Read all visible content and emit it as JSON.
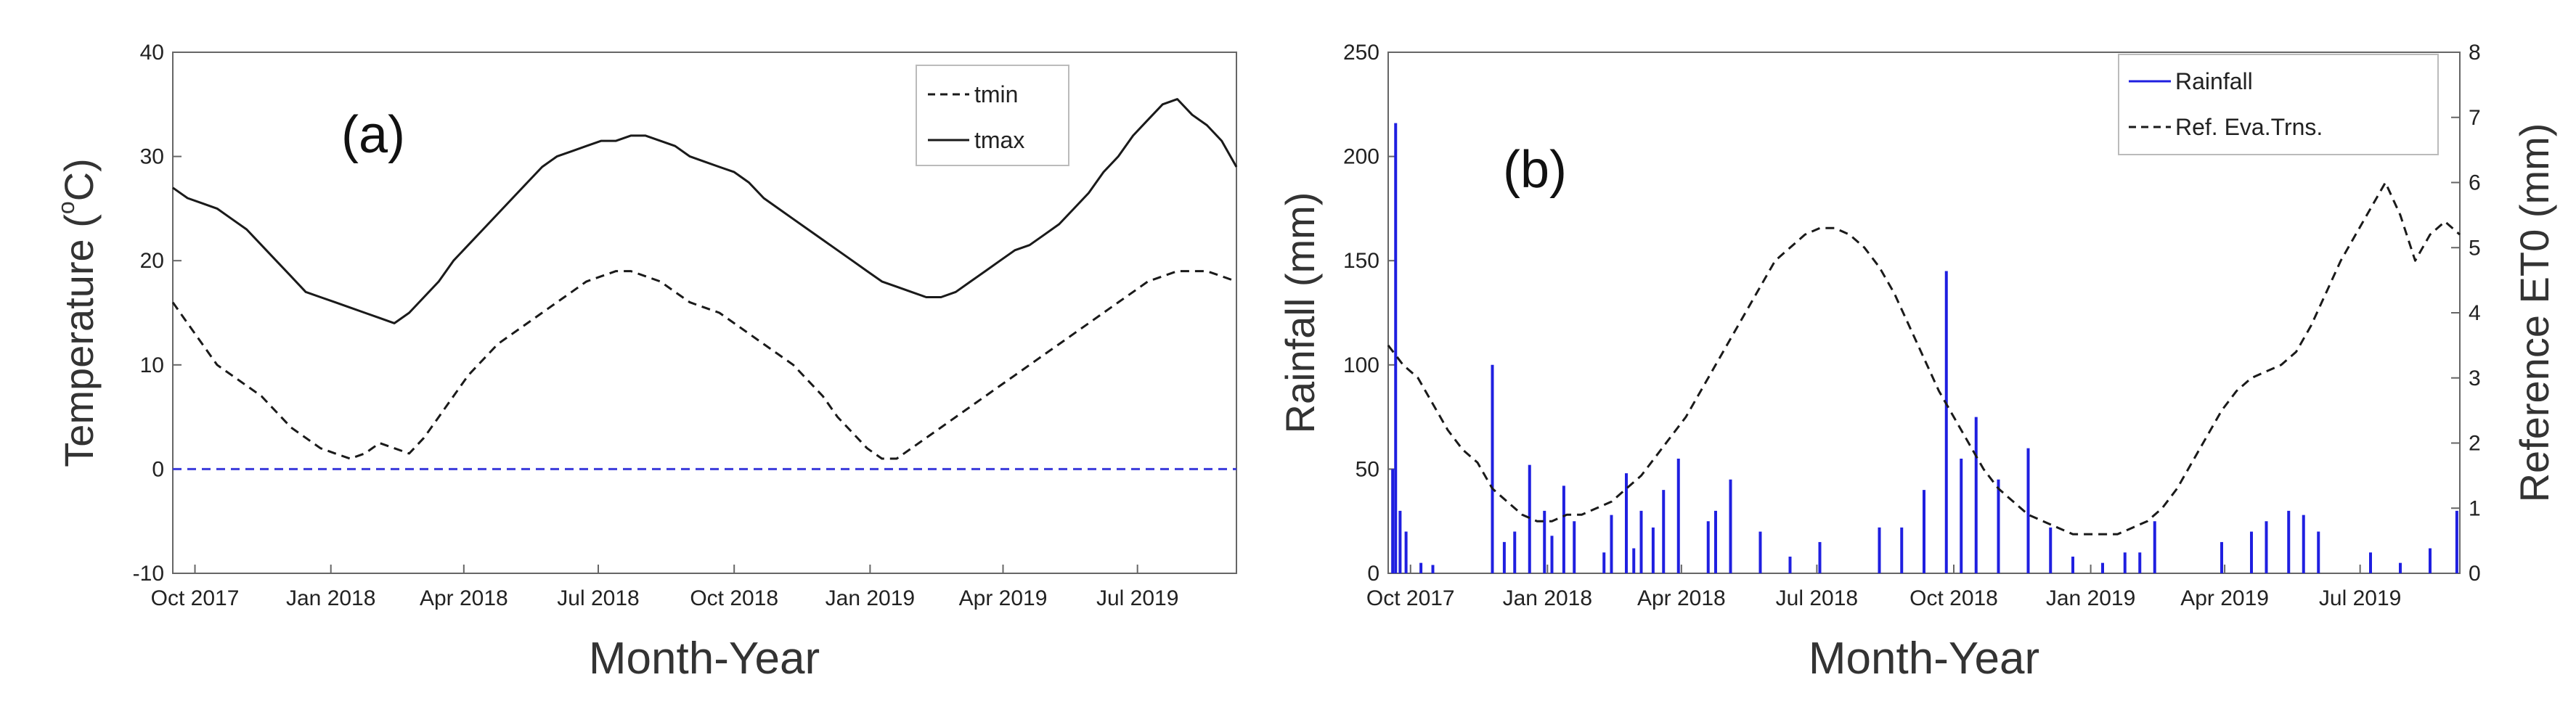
{
  "chart_data": [
    {
      "panel": "(a)",
      "type": "line",
      "title": "",
      "xlabel": "Month-Year",
      "ylabel": "Temperature (°C)",
      "ylabel_main": "Temperature (",
      "ylabel_degree": "o",
      "ylabel_unit": "C)",
      "xlim": [
        0,
        720
      ],
      "ylim": [
        -10,
        40
      ],
      "yticks": [
        -10,
        0,
        10,
        20,
        30,
        40
      ],
      "ytick_labels": [
        "-10",
        "0",
        "10",
        "20",
        "30",
        "40"
      ],
      "xticks": [
        {
          "label": "Oct 2017",
          "day": 15
        },
        {
          "label": "Jan 2018",
          "day": 107
        },
        {
          "label": "Apr 2018",
          "day": 197
        },
        {
          "label": "Jul 2018",
          "day": 288
        },
        {
          "label": "Oct 2018",
          "day": 380
        },
        {
          "label": "Jan 2019",
          "day": 472
        },
        {
          "label": "Apr 2019",
          "day": 562
        },
        {
          "label": "Jul 2019",
          "day": 653
        }
      ],
      "legend": {
        "position": "top-right",
        "entries": [
          "tmin",
          "tmax"
        ]
      },
      "series": [
        {
          "name": "tmax",
          "style": "solid",
          "color": "#1a1a1a",
          "x": [
            0,
            10,
            20,
            30,
            40,
            50,
            60,
            70,
            80,
            90,
            100,
            110,
            120,
            130,
            140,
            150,
            160,
            170,
            180,
            190,
            200,
            210,
            220,
            230,
            240,
            250,
            260,
            270,
            280,
            290,
            300,
            310,
            320,
            330,
            340,
            350,
            360,
            370,
            380,
            390,
            400,
            410,
            420,
            430,
            440,
            450,
            460,
            470,
            480,
            490,
            500,
            510,
            520,
            530,
            540,
            550,
            560,
            570,
            580,
            590,
            600,
            610,
            620,
            630,
            640,
            650,
            660,
            670,
            680,
            690,
            700,
            710,
            720
          ],
          "y": [
            27,
            26,
            25.5,
            25,
            24,
            23,
            21.5,
            20,
            18.5,
            17,
            16.5,
            16,
            15.5,
            15,
            14.5,
            14,
            15,
            16.5,
            18,
            20,
            21.5,
            23,
            24.5,
            26,
            27.5,
            29,
            30,
            30.5,
            31,
            31.5,
            31.5,
            32,
            32,
            31.5,
            31,
            30,
            29.5,
            29,
            28.5,
            27.5,
            26,
            25,
            24,
            23,
            22,
            21,
            20,
            19,
            18,
            17.5,
            17,
            16.5,
            16.5,
            17,
            18,
            19,
            20,
            21,
            21.5,
            22.5,
            23.5,
            25,
            26.5,
            28.5,
            30,
            32,
            33.5,
            35,
            35.5,
            34,
            33,
            31.5,
            29
          ]
        },
        {
          "name": "tmin",
          "style": "dashed",
          "color": "#1a1a1a",
          "x": [
            0,
            10,
            20,
            30,
            40,
            50,
            60,
            70,
            80,
            90,
            100,
            110,
            120,
            130,
            140,
            150,
            160,
            170,
            180,
            190,
            200,
            210,
            220,
            230,
            240,
            250,
            260,
            270,
            280,
            290,
            300,
            310,
            320,
            330,
            340,
            350,
            360,
            370,
            380,
            390,
            400,
            410,
            420,
            430,
            440,
            450,
            460,
            470,
            480,
            490,
            500,
            510,
            520,
            530,
            540,
            550,
            560,
            570,
            580,
            590,
            600,
            610,
            620,
            630,
            640,
            650,
            660,
            670,
            680,
            690,
            700,
            710,
            720
          ],
          "y": [
            16,
            14,
            12,
            10,
            9,
            8,
            7,
            5.5,
            4,
            3,
            2,
            1.5,
            1,
            1.5,
            2.5,
            2,
            1.5,
            3,
            5,
            7,
            9,
            10.5,
            12,
            13,
            14,
            15,
            16,
            17,
            18,
            18.5,
            19,
            19,
            18.5,
            18,
            17,
            16,
            15.5,
            15,
            14,
            13,
            12,
            11,
            10,
            8.5,
            7,
            5,
            3.5,
            2,
            1,
            1,
            2,
            3,
            4,
            5,
            6,
            7,
            8,
            9,
            10,
            11,
            12,
            13,
            14,
            15,
            16,
            17,
            18,
            18.5,
            19,
            19,
            19,
            18.5,
            18
          ]
        },
        {
          "name": "zero reference",
          "style": "dashed",
          "color": "#3a3adb",
          "x": [
            0,
            720
          ],
          "y": [
            0,
            0
          ]
        }
      ]
    },
    {
      "panel": "(b)",
      "type": "line",
      "title": "",
      "xlabel": "Month-Year",
      "ylabel": "Rainfall (mm)",
      "ylabel_right": "Reference ET0 (mm)",
      "xlim": [
        0,
        720
      ],
      "ylim": [
        0,
        250
      ],
      "ylim_right": [
        0,
        8
      ],
      "yticks": [
        0,
        50,
        100,
        150,
        200,
        250
      ],
      "ytick_labels": [
        "0",
        "50",
        "100",
        "150",
        "200",
        "250"
      ],
      "yticks_right": [
        0,
        1,
        2,
        3,
        4,
        5,
        6,
        7,
        8
      ],
      "ytick_labels_right": [
        "0",
        "1",
        "2",
        "3",
        "4",
        "5",
        "6",
        "7",
        "8"
      ],
      "xticks": [
        {
          "label": "Oct 2017",
          "day": 15
        },
        {
          "label": "Jan 2018",
          "day": 107
        },
        {
          "label": "Apr 2018",
          "day": 197
        },
        {
          "label": "Jul 2018",
          "day": 288
        },
        {
          "label": "Oct 2018",
          "day": 380
        },
        {
          "label": "Jan 2019",
          "day": 472
        },
        {
          "label": "Apr 2019",
          "day": 562
        },
        {
          "label": "Jul 2019",
          "day": 653
        }
      ],
      "legend": {
        "position": "top-right",
        "entries": [
          "Rainfall",
          "Ref. Eva.Trns."
        ]
      },
      "series": [
        {
          "name": "Rainfall",
          "axis": "left",
          "style": "spikes",
          "color": "#1f1fe0",
          "x": [
            3,
            5,
            8,
            12,
            22,
            30,
            70,
            78,
            85,
            95,
            105,
            110,
            118,
            125,
            145,
            150,
            160,
            165,
            170,
            178,
            185,
            195,
            215,
            220,
            230,
            250,
            270,
            290,
            330,
            345,
            360,
            375,
            385,
            395,
            410,
            430,
            445,
            460,
            480,
            495,
            505,
            515,
            560,
            580,
            590,
            605,
            615,
            625,
            660,
            680,
            700,
            718
          ],
          "y": [
            50,
            216,
            30,
            20,
            5,
            4,
            100,
            15,
            20,
            52,
            30,
            18,
            42,
            25,
            10,
            28,
            48,
            12,
            30,
            22,
            40,
            55,
            25,
            30,
            45,
            20,
            8,
            15,
            22,
            22,
            40,
            145,
            55,
            75,
            45,
            60,
            22,
            8,
            5,
            10,
            10,
            25,
            15,
            20,
            25,
            30,
            28,
            20,
            10,
            5,
            12,
            30
          ]
        },
        {
          "name": "Ref. Eva.Trns.",
          "axis": "right",
          "style": "dashed",
          "color": "#1a1a1a",
          "x": [
            0,
            10,
            20,
            30,
            40,
            50,
            60,
            70,
            80,
            90,
            100,
            110,
            120,
            130,
            140,
            150,
            160,
            170,
            180,
            190,
            200,
            210,
            220,
            230,
            240,
            250,
            260,
            270,
            280,
            290,
            300,
            310,
            320,
            330,
            340,
            350,
            360,
            370,
            380,
            390,
            400,
            410,
            420,
            430,
            440,
            450,
            460,
            470,
            480,
            490,
            500,
            510,
            520,
            530,
            540,
            550,
            560,
            570,
            580,
            590,
            600,
            610,
            620,
            630,
            640,
            650,
            660,
            670,
            680,
            690,
            700,
            710,
            720
          ],
          "y": [
            3.5,
            3.2,
            3,
            2.6,
            2.2,
            1.9,
            1.7,
            1.3,
            1.1,
            0.9,
            0.8,
            0.8,
            0.9,
            0.9,
            1,
            1.1,
            1.3,
            1.5,
            1.8,
            2.1,
            2.4,
            2.8,
            3.2,
            3.6,
            4,
            4.4,
            4.8,
            5,
            5.2,
            5.3,
            5.3,
            5.2,
            5,
            4.7,
            4.3,
            3.8,
            3.3,
            2.8,
            2.4,
            2,
            1.6,
            1.3,
            1.1,
            0.9,
            0.8,
            0.7,
            0.6,
            0.6,
            0.6,
            0.6,
            0.7,
            0.8,
            1,
            1.3,
            1.7,
            2.1,
            2.5,
            2.8,
            3,
            3.1,
            3.2,
            3.4,
            3.8,
            4.3,
            4.8,
            5.2,
            5.6,
            6,
            5.5,
            4.8,
            5.2,
            5.4,
            5.2
          ]
        }
      ]
    }
  ]
}
